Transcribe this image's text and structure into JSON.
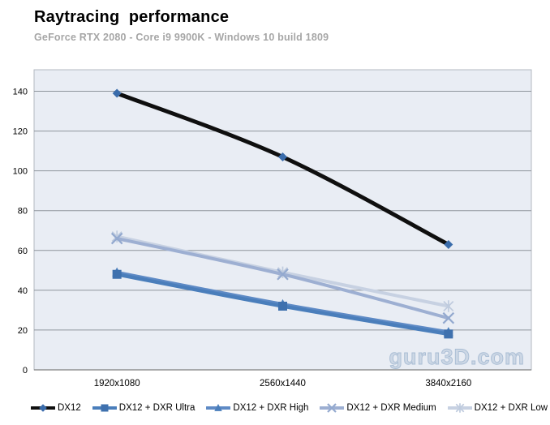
{
  "header": {
    "title": "Raytracing  performance",
    "subtitle": "GeForce RTX 2080 - Core i9 9900K - Windows 10 build 1809"
  },
  "watermark": "guru3D.com",
  "chart_data": {
    "type": "line",
    "title": "Raytracing performance",
    "subtitle": "GeForce RTX 2080 - Core i9 9900K - Windows 10 build 1809",
    "categories": [
      "1920x1080",
      "2560x1440",
      "3840x2160"
    ],
    "xlabel": "",
    "ylabel": "",
    "ylim": [
      0,
      150
    ],
    "yticks": [
      0,
      20,
      40,
      60,
      80,
      100,
      120,
      140
    ],
    "grid": true,
    "legend_position": "bottom",
    "plot_background": "#e9edf4",
    "grid_color": "#8f959c",
    "axis_color": "#7f7f7f",
    "series": [
      {
        "name": "DX12",
        "values": [
          139,
          107,
          63
        ],
        "line_color": "#0f0f0f",
        "line_width": 5,
        "marker": "diamond",
        "marker_color": "#3a6cab"
      },
      {
        "name": "DX12 + DXR Ultra",
        "values": [
          48,
          32,
          18
        ],
        "line_color": "#4a7ebb",
        "line_width": 4.5,
        "marker": "square",
        "marker_color": "#3f71ae"
      },
      {
        "name": "DX12 + DXR High",
        "values": [
          49,
          33,
          19
        ],
        "line_color": "#5e8ac5",
        "line_width": 4,
        "marker": "triangle",
        "marker_color": "#4a7ebb"
      },
      {
        "name": "DX12 + DXR Medium",
        "values": [
          66,
          48,
          26
        ],
        "line_color": "#9dafd2",
        "line_width": 4,
        "marker": "x",
        "marker_color": "#93a9cf"
      },
      {
        "name": "DX12 + DXR Low",
        "values": [
          67,
          49,
          32
        ],
        "line_color": "#c7d1e2",
        "line_width": 4,
        "marker": "asterisk",
        "marker_color": "#bfcbde"
      }
    ]
  }
}
